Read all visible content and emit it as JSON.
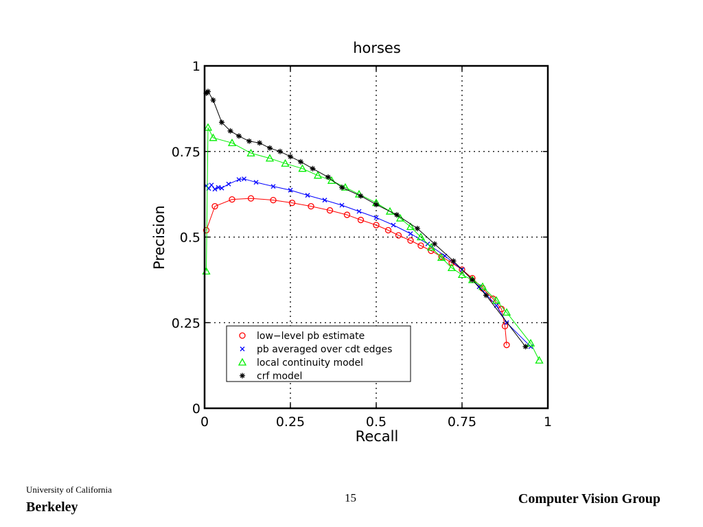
{
  "chart_data": {
    "type": "line",
    "title": "horses",
    "xlabel": "Recall",
    "ylabel": "Precision",
    "xlim": [
      0,
      1
    ],
    "ylim": [
      0,
      1
    ],
    "xticks": [
      0,
      0.25,
      0.5,
      0.75,
      1
    ],
    "xtick_labels": [
      "0",
      "0.25",
      "0.5",
      "0.75",
      "1"
    ],
    "yticks": [
      0,
      0.25,
      0.5,
      0.75,
      1
    ],
    "ytick_labels": [
      "0",
      "0.25",
      "0.5",
      "0.75",
      "1"
    ],
    "grid": true,
    "legend_position": "bottom-left",
    "series": [
      {
        "name": "low−level pb estimate",
        "color": "#ff0000",
        "marker": "circle",
        "points": [
          [
            0.005,
            0.52
          ],
          [
            0.03,
            0.59
          ],
          [
            0.08,
            0.61
          ],
          [
            0.135,
            0.613
          ],
          [
            0.2,
            0.608
          ],
          [
            0.255,
            0.6
          ],
          [
            0.31,
            0.59
          ],
          [
            0.365,
            0.578
          ],
          [
            0.415,
            0.565
          ],
          [
            0.455,
            0.55
          ],
          [
            0.5,
            0.535
          ],
          [
            0.535,
            0.52
          ],
          [
            0.565,
            0.505
          ],
          [
            0.6,
            0.49
          ],
          [
            0.63,
            0.475
          ],
          [
            0.66,
            0.46
          ],
          [
            0.69,
            0.443
          ],
          [
            0.72,
            0.425
          ],
          [
            0.75,
            0.405
          ],
          [
            0.78,
            0.38
          ],
          [
            0.81,
            0.35
          ],
          [
            0.84,
            0.32
          ],
          [
            0.865,
            0.29
          ],
          [
            0.875,
            0.24
          ],
          [
            0.88,
            0.185
          ]
        ]
      },
      {
        "name": "pb averaged over cdt edges",
        "color": "#0000ff",
        "marker": "x",
        "points": [
          [
            0.005,
            0.65
          ],
          [
            0.012,
            0.642
          ],
          [
            0.02,
            0.652
          ],
          [
            0.03,
            0.64
          ],
          [
            0.04,
            0.645
          ],
          [
            0.05,
            0.643
          ],
          [
            0.07,
            0.655
          ],
          [
            0.1,
            0.668
          ],
          [
            0.115,
            0.67
          ],
          [
            0.15,
            0.66
          ],
          [
            0.2,
            0.648
          ],
          [
            0.25,
            0.637
          ],
          [
            0.3,
            0.622
          ],
          [
            0.35,
            0.608
          ],
          [
            0.4,
            0.593
          ],
          [
            0.45,
            0.575
          ],
          [
            0.5,
            0.557
          ],
          [
            0.55,
            0.535
          ],
          [
            0.6,
            0.51
          ],
          [
            0.65,
            0.48
          ],
          [
            0.7,
            0.445
          ],
          [
            0.75,
            0.405
          ],
          [
            0.8,
            0.355
          ],
          [
            0.85,
            0.3
          ],
          [
            0.88,
            0.25
          ],
          [
            0.95,
            0.18
          ]
        ]
      },
      {
        "name": "local continuity model",
        "color": "#00ee00",
        "marker": "triangle",
        "points": [
          [
            0.005,
            0.4
          ],
          [
            0.01,
            0.82
          ],
          [
            0.025,
            0.79
          ],
          [
            0.08,
            0.775
          ],
          [
            0.135,
            0.745
          ],
          [
            0.19,
            0.73
          ],
          [
            0.235,
            0.715
          ],
          [
            0.285,
            0.7
          ],
          [
            0.33,
            0.68
          ],
          [
            0.37,
            0.665
          ],
          [
            0.41,
            0.645
          ],
          [
            0.45,
            0.625
          ],
          [
            0.5,
            0.6
          ],
          [
            0.54,
            0.575
          ],
          [
            0.57,
            0.555
          ],
          [
            0.6,
            0.53
          ],
          [
            0.63,
            0.5
          ],
          [
            0.66,
            0.47
          ],
          [
            0.69,
            0.44
          ],
          [
            0.72,
            0.41
          ],
          [
            0.75,
            0.39
          ],
          [
            0.78,
            0.375
          ],
          [
            0.81,
            0.355
          ],
          [
            0.85,
            0.315
          ],
          [
            0.88,
            0.28
          ],
          [
            0.95,
            0.19
          ],
          [
            0.975,
            0.14
          ]
        ]
      },
      {
        "name": "crf model",
        "color": "#000000",
        "marker": "star",
        "points": [
          [
            0.005,
            0.92
          ],
          [
            0.01,
            0.925
          ],
          [
            0.025,
            0.9
          ],
          [
            0.05,
            0.835
          ],
          [
            0.075,
            0.81
          ],
          [
            0.1,
            0.795
          ],
          [
            0.13,
            0.78
          ],
          [
            0.16,
            0.775
          ],
          [
            0.19,
            0.76
          ],
          [
            0.22,
            0.75
          ],
          [
            0.25,
            0.735
          ],
          [
            0.28,
            0.72
          ],
          [
            0.315,
            0.7
          ],
          [
            0.36,
            0.675
          ],
          [
            0.4,
            0.645
          ],
          [
            0.455,
            0.62
          ],
          [
            0.5,
            0.595
          ],
          [
            0.56,
            0.565
          ],
          [
            0.62,
            0.525
          ],
          [
            0.67,
            0.48
          ],
          [
            0.725,
            0.43
          ],
          [
            0.78,
            0.375
          ],
          [
            0.82,
            0.33
          ],
          [
            0.935,
            0.18
          ]
        ]
      }
    ]
  },
  "footer": {
    "university": "University of California",
    "campus": "Berkeley",
    "page_number": "15",
    "group": "Computer Vision Group"
  }
}
